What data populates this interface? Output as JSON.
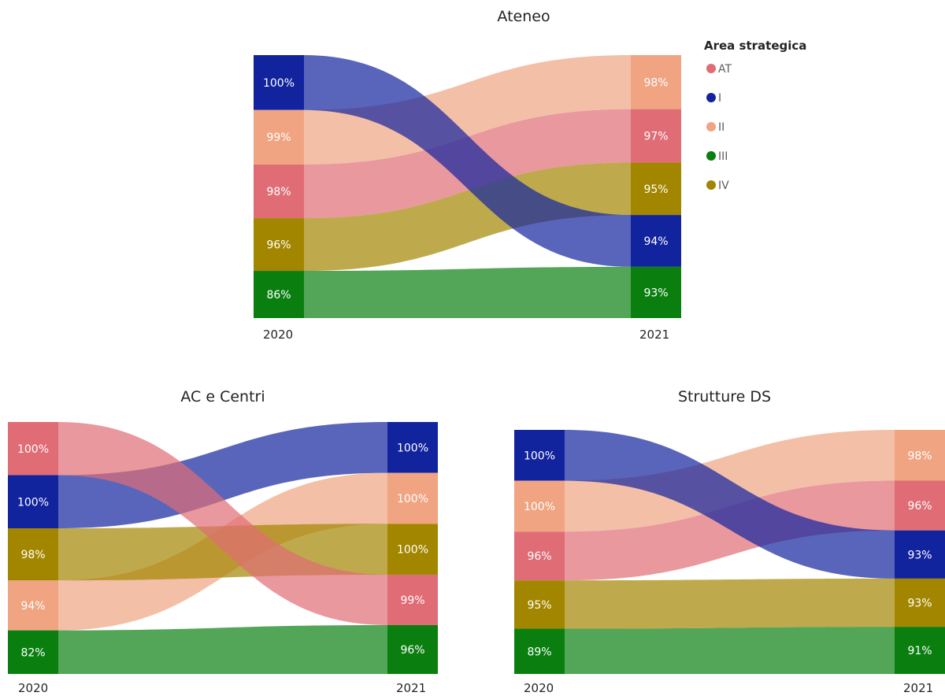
{
  "legend": {
    "title": "Area strategica",
    "items": [
      {
        "name": "AT",
        "color": "#E06C75"
      },
      {
        "name": "I",
        "color": "#12239E"
      },
      {
        "name": "II",
        "color": "#F0A482"
      },
      {
        "name": "III",
        "color": "#0A7F10"
      },
      {
        "name": "IV",
        "color": "#A38600"
      }
    ]
  },
  "chart_data": [
    {
      "type": "slope",
      "title": "Ateneo",
      "x": [
        "2020",
        "2021"
      ],
      "series": [
        {
          "name": "AT",
          "values": [
            98,
            97
          ]
        },
        {
          "name": "I",
          "values": [
            100,
            94
          ]
        },
        {
          "name": "II",
          "values": [
            99,
            98
          ]
        },
        {
          "name": "III",
          "values": [
            86,
            93
          ]
        },
        {
          "name": "IV",
          "values": [
            96,
            95
          ]
        }
      ],
      "labels": {
        "AT": [
          "98%",
          "97%"
        ],
        "I": [
          "100%",
          "94%"
        ],
        "II": [
          "99%",
          "98%"
        ],
        "III": [
          "86%",
          "93%"
        ],
        "IV": [
          "96%",
          "95%"
        ]
      }
    },
    {
      "type": "slope",
      "title": "AC e Centri",
      "x": [
        "2020",
        "2021"
      ],
      "series": [
        {
          "name": "AT",
          "values": [
            100,
            99
          ]
        },
        {
          "name": "I",
          "values": [
            100,
            100
          ]
        },
        {
          "name": "II",
          "values": [
            94,
            100
          ]
        },
        {
          "name": "III",
          "values": [
            82,
            96
          ]
        },
        {
          "name": "IV",
          "values": [
            98,
            100
          ]
        }
      ],
      "labels": {
        "AT": [
          "100%",
          "99%"
        ],
        "I": [
          "100%",
          "100%"
        ],
        "II": [
          "94%",
          "100%"
        ],
        "III": [
          "82%",
          "96%"
        ],
        "IV": [
          "98%",
          "100%"
        ]
      }
    },
    {
      "type": "slope",
      "title": "Strutture DS",
      "x": [
        "2020",
        "2021"
      ],
      "series": [
        {
          "name": "AT",
          "values": [
            96,
            96
          ]
        },
        {
          "name": "I",
          "values": [
            100,
            93
          ]
        },
        {
          "name": "II",
          "values": [
            100,
            98
          ]
        },
        {
          "name": "III",
          "values": [
            89,
            91
          ]
        },
        {
          "name": "IV",
          "values": [
            95,
            93
          ]
        }
      ],
      "labels": {
        "AT": [
          "96%",
          "96%"
        ],
        "I": [
          "100%",
          "93%"
        ],
        "II": [
          "100%",
          "98%"
        ],
        "III": [
          "89%",
          "91%"
        ],
        "IV": [
          "95%",
          "93%"
        ]
      }
    }
  ]
}
